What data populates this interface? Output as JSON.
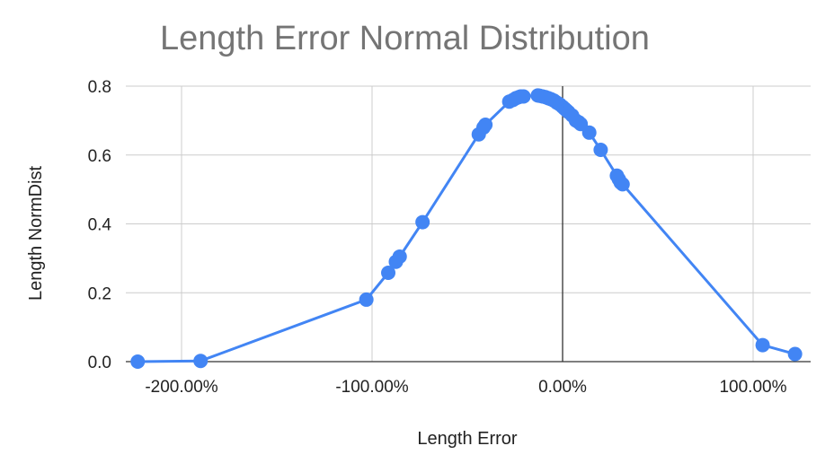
{
  "chart_data": {
    "type": "scatter",
    "title": "Length Error Normal Distribution",
    "xlabel": "Length Error",
    "ylabel": "Length NormDist",
    "xlim": [
      -2.25,
      1.27
    ],
    "ylim": [
      0,
      0.8
    ],
    "x_ticks": [
      -2.0,
      -1.0,
      0.0,
      1.0
    ],
    "x_tick_labels": [
      "-200.00%",
      "-100.00%",
      "0.00%",
      "100.00%"
    ],
    "y_ticks": [
      0,
      0.2,
      0.4,
      0.6,
      0.8
    ],
    "y_tick_labels": [
      "0.0",
      "0.2",
      "0.4",
      "0.6",
      "0.8"
    ],
    "grid": true,
    "legend": "none",
    "series": [
      {
        "color": "#4285f4",
        "connected": true,
        "x": [
          -2.23,
          -1.9,
          -1.03,
          -0.915,
          -0.875,
          -0.855,
          -0.735,
          -0.44,
          -0.415,
          -0.405,
          -0.28,
          -0.26,
          -0.245,
          -0.23,
          -0.22,
          -0.205,
          -0.13,
          -0.12,
          -0.105,
          -0.09,
          -0.075,
          -0.06,
          -0.045,
          -0.03,
          -0.015,
          0.0,
          0.01,
          0.02,
          0.03,
          0.05,
          0.07,
          0.085,
          0.095,
          0.14,
          0.2,
          0.285,
          0.295,
          0.305,
          0.315,
          1.05,
          1.22
        ],
        "y": [
          0.0,
          0.002,
          0.18,
          0.258,
          0.29,
          0.305,
          0.405,
          0.66,
          0.68,
          0.688,
          0.755,
          0.76,
          0.765,
          0.768,
          0.77,
          0.77,
          0.773,
          0.772,
          0.77,
          0.768,
          0.765,
          0.762,
          0.758,
          0.752,
          0.747,
          0.74,
          0.735,
          0.73,
          0.725,
          0.715,
          0.7,
          0.695,
          0.69,
          0.665,
          0.615,
          0.54,
          0.53,
          0.52,
          0.515,
          0.048,
          0.022
        ]
      }
    ]
  }
}
